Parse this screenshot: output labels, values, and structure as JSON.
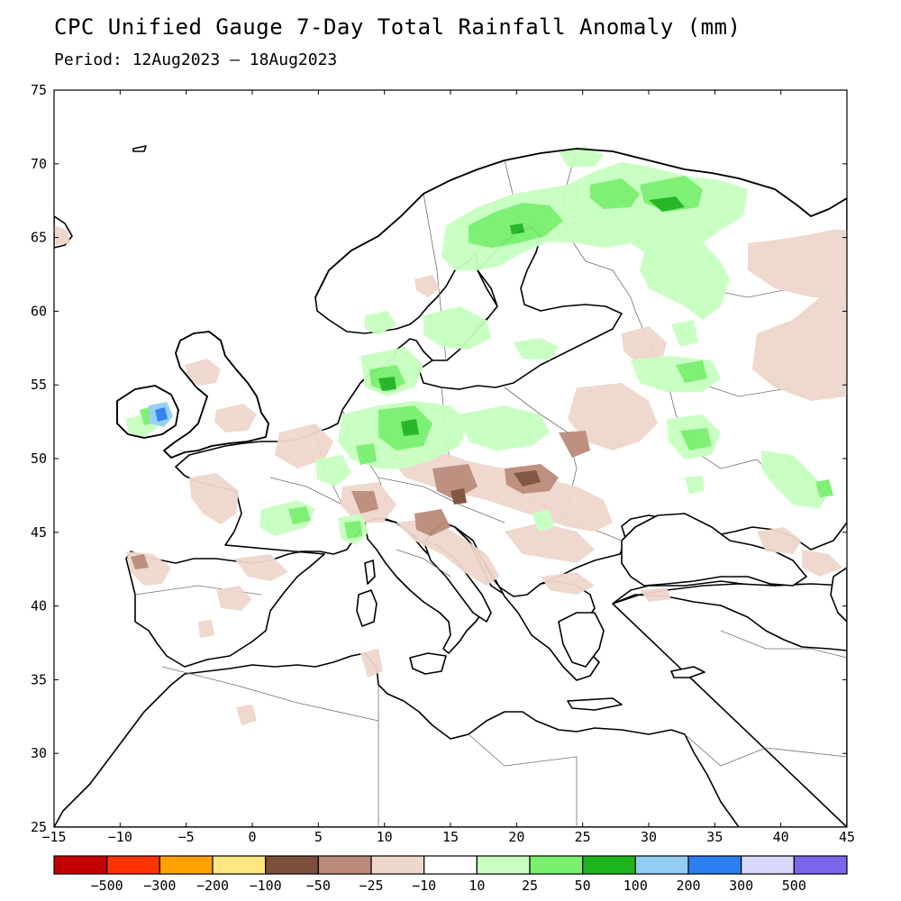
{
  "title": "CPC Unified Gauge 7-Day Total Rainfall Anomaly (mm)",
  "period": "Period: 12Aug2023 – 18Aug2023",
  "map": {
    "lon_range": [
      -15,
      45
    ],
    "lat_range": [
      25,
      75
    ],
    "lon_ticks": [
      "−15",
      "−10",
      "−5",
      "0",
      "5",
      "10",
      "15",
      "20",
      "25",
      "30",
      "35",
      "40",
      "45"
    ],
    "lat_ticks": [
      "25",
      "30",
      "35",
      "40",
      "45",
      "50",
      "55",
      "60",
      "65",
      "70",
      "75"
    ]
  },
  "legend": {
    "colors": [
      "#c40000",
      "#ff3300",
      "#ffa200",
      "#ffe680",
      "#7b4f3c",
      "#ba8b7a",
      "#efd6cb",
      "#ffffff",
      "#c8ffc0",
      "#78f06e",
      "#1eb41e",
      "#94cdf4",
      "#2b7ef0",
      "#d8d8fa",
      "#7a65eb"
    ],
    "labels": [
      "−500",
      "−300",
      "−200",
      "−100",
      "−50",
      "−25",
      "−10",
      "10",
      "25",
      "50",
      "100",
      "200",
      "300",
      "500"
    ]
  },
  "colors": {
    "land_outline": "#000000",
    "border": "#606060",
    "dry_light": "#efd6cb",
    "dry_mid": "#ba8b7a",
    "dry_dark": "#7b4f3c",
    "wet_light": "#c8ffc0",
    "wet_mid": "#78f06e",
    "wet_dark": "#1eb41e",
    "wet_blue": "#94cdf4",
    "wet_blue_dark": "#2b7ef0"
  }
}
